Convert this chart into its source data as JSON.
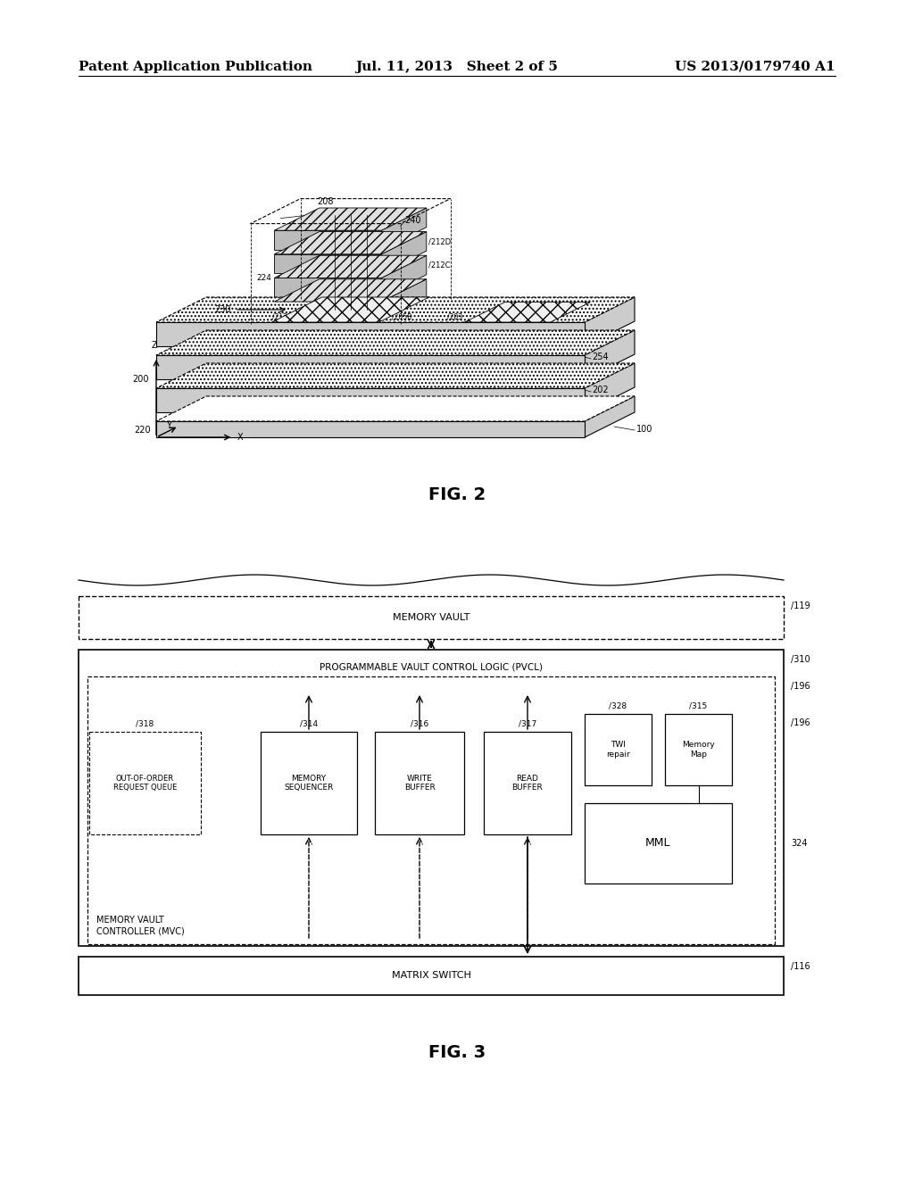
{
  "background_color": "#ffffff",
  "header_left": "Patent Application Publication",
  "header_center": "Jul. 11, 2013   Sheet 2 of 5",
  "header_right": "US 2013/0179740 A1",
  "header_fontsize": 11,
  "fig2_label": "FIG. 2",
  "fig3_label": "FIG. 3",
  "memory_vault_label": "MEMORY VAULT",
  "pvl_label": "PROGRAMMABLE VAULT CONTROL LOGIC (PVCL)",
  "matrix_switch_label": "MATRIX SWITCH",
  "mvc_label": "MEMORY VAULT\nCONTROLLER (MVC)",
  "ooq_label": "OUT-OF-ORDER\nREQUEST QUEUE",
  "ms_label": "MEMORY\nSEQUENCER",
  "wb_label": "WRITE\nBUFFER",
  "rb_label": "READ\nBUFFER",
  "twi_label": "TWI\nrepair",
  "mm_label": "Memory\nMap",
  "mml_label": "MML"
}
